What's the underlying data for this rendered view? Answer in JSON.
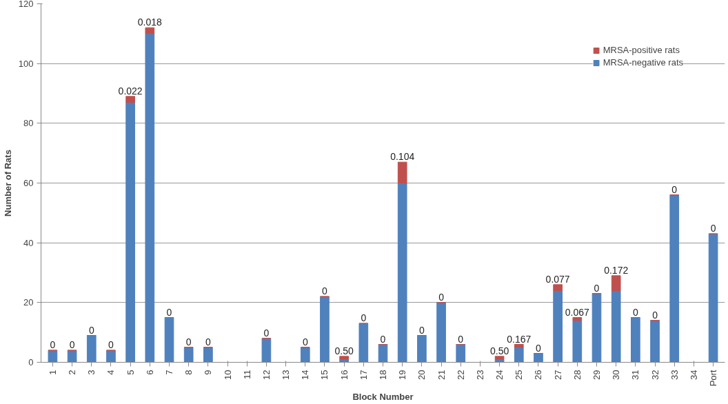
{
  "chart_data": {
    "type": "bar",
    "stacked": true,
    "xlabel": "Block Number",
    "ylabel": "Number of Rats",
    "categories": [
      "1",
      "2",
      "3",
      "4",
      "5",
      "6",
      "7",
      "8",
      "9",
      "10",
      "11",
      "12",
      "13",
      "14",
      "15",
      "16",
      "17",
      "18",
      "19",
      "20",
      "21",
      "22",
      "23",
      "24",
      "25",
      "26",
      "27",
      "28",
      "29",
      "30",
      "31",
      "32",
      "33",
      "34",
      "Port"
    ],
    "series": [
      {
        "name": "MRSA-negative rats",
        "color": "#4f81bd",
        "values": [
          4,
          4,
          9,
          4,
          87,
          110,
          15,
          5,
          5,
          0,
          0,
          8,
          0,
          5,
          22,
          1,
          13,
          6,
          60,
          9,
          20,
          6,
          0,
          1,
          5,
          3,
          24,
          14,
          23,
          24,
          15,
          14,
          56,
          0,
          43
        ]
      },
      {
        "name": "MRSA-positive rats",
        "color": "#c0504d",
        "values": [
          0,
          0,
          0,
          0,
          2,
          2,
          0,
          0,
          0,
          0,
          0,
          0,
          0,
          0,
          0,
          1,
          0,
          0,
          7,
          0,
          0,
          0,
          0,
          1,
          1,
          0,
          2,
          1,
          0,
          5,
          0,
          0,
          0,
          0,
          0
        ]
      }
    ],
    "value_labels": [
      "0",
      "0",
      "0",
      "0",
      "0.022",
      "0.018",
      "0",
      "0",
      "0",
      null,
      null,
      "0",
      null,
      "0",
      "0",
      "0.50",
      "0",
      "0",
      "0.104",
      "0",
      "0",
      "0",
      null,
      "0.50",
      "0.167",
      "0",
      "0.077",
      "0.067",
      "0",
      "0.172",
      "0",
      "0",
      "0",
      null,
      "0"
    ],
    "ylim": [
      0,
      120
    ],
    "yticks": [
      0,
      20,
      40,
      60,
      80,
      100,
      120
    ],
    "grid": "y",
    "legend": "top right"
  }
}
